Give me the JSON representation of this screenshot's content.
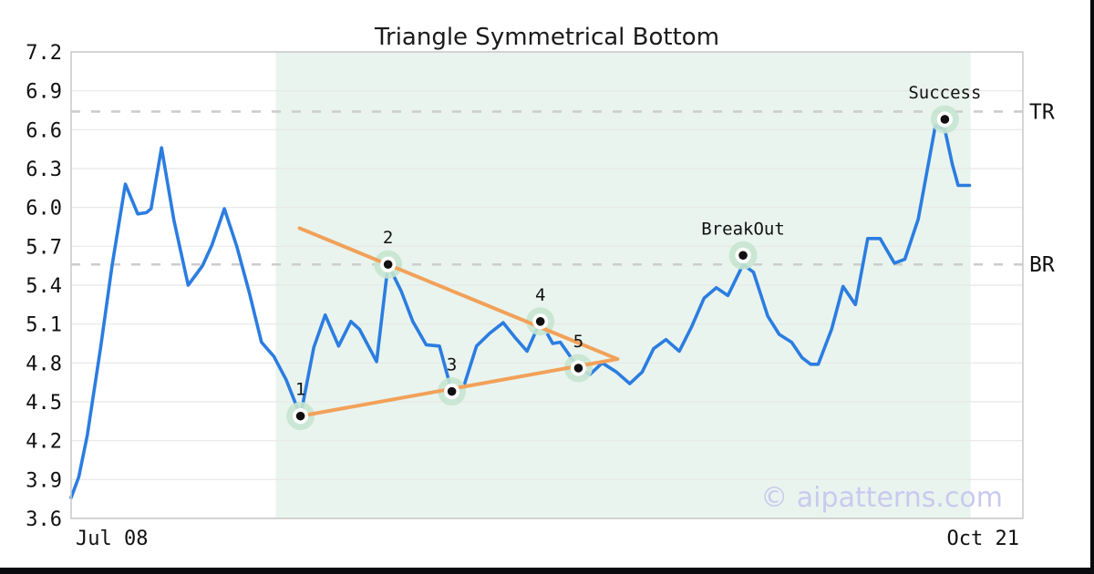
{
  "chart_data": {
    "type": "line",
    "title": "Triangle Symmetrical Bottom",
    "watermark": "© aipatterns.com",
    "ylim": [
      3.6,
      7.2
    ],
    "ytick_step": 0.3,
    "ytick_labels": [
      "3.6",
      "3.9",
      "4.2",
      "4.5",
      "4.8",
      "5.1",
      "5.4",
      "5.7",
      "6.0",
      "6.3",
      "6.6",
      "6.9",
      "7.2"
    ],
    "xtick_labels": [
      "Jul 08",
      "Oct 21"
    ],
    "grid": "horizontal",
    "legend": "none",
    "series": [
      {
        "name": "price",
        "points": [
          [
            0.0,
            3.76
          ],
          [
            0.008,
            3.92
          ],
          [
            0.017,
            4.24
          ],
          [
            0.031,
            4.92
          ],
          [
            0.043,
            5.55
          ],
          [
            0.057,
            6.18
          ],
          [
            0.07,
            5.95
          ],
          [
            0.079,
            5.96
          ],
          [
            0.084,
            5.99
          ],
          [
            0.095,
            6.46
          ],
          [
            0.108,
            5.9
          ],
          [
            0.123,
            5.4
          ],
          [
            0.129,
            5.46
          ],
          [
            0.138,
            5.55
          ],
          [
            0.148,
            5.71
          ],
          [
            0.161,
            5.99
          ],
          [
            0.174,
            5.7
          ],
          [
            0.187,
            5.35
          ],
          [
            0.2,
            4.96
          ],
          [
            0.213,
            4.85
          ],
          [
            0.226,
            4.67
          ],
          [
            0.241,
            4.39
          ],
          [
            0.255,
            4.92
          ],
          [
            0.267,
            5.17
          ],
          [
            0.281,
            4.93
          ],
          [
            0.294,
            5.12
          ],
          [
            0.303,
            5.06
          ],
          [
            0.321,
            4.81
          ],
          [
            0.333,
            5.56
          ],
          [
            0.347,
            5.35
          ],
          [
            0.359,
            5.12
          ],
          [
            0.373,
            4.94
          ],
          [
            0.387,
            4.93
          ],
          [
            0.4,
            4.58
          ],
          [
            0.413,
            4.63
          ],
          [
            0.426,
            4.93
          ],
          [
            0.44,
            5.03
          ],
          [
            0.454,
            5.11
          ],
          [
            0.466,
            5.0
          ],
          [
            0.479,
            4.89
          ],
          [
            0.493,
            5.12
          ],
          [
            0.506,
            4.95
          ],
          [
            0.514,
            4.96
          ],
          [
            0.533,
            4.76
          ],
          [
            0.545,
            4.71
          ],
          [
            0.558,
            4.8
          ],
          [
            0.573,
            4.73
          ],
          [
            0.587,
            4.64
          ],
          [
            0.6,
            4.73
          ],
          [
            0.612,
            4.91
          ],
          [
            0.625,
            4.98
          ],
          [
            0.639,
            4.89
          ],
          [
            0.652,
            5.08
          ],
          [
            0.665,
            5.3
          ],
          [
            0.678,
            5.38
          ],
          [
            0.69,
            5.32
          ],
          [
            0.706,
            5.56
          ],
          [
            0.717,
            5.5
          ],
          [
            0.732,
            5.16
          ],
          [
            0.744,
            5.02
          ],
          [
            0.757,
            4.96
          ],
          [
            0.768,
            4.84
          ],
          [
            0.777,
            4.79
          ],
          [
            0.785,
            4.79
          ],
          [
            0.799,
            5.06
          ],
          [
            0.811,
            5.39
          ],
          [
            0.824,
            5.25
          ],
          [
            0.837,
            5.76
          ],
          [
            0.85,
            5.76
          ],
          [
            0.865,
            5.57
          ],
          [
            0.876,
            5.6
          ],
          [
            0.89,
            5.91
          ],
          [
            0.908,
            6.63
          ],
          [
            0.918,
            6.6
          ],
          [
            0.926,
            6.33
          ],
          [
            0.932,
            6.17
          ],
          [
            0.944,
            6.17
          ]
        ]
      }
    ],
    "trendlines": [
      {
        "name": "upper-resistance",
        "from": [
          0.24,
          5.84
        ],
        "to": [
          0.574,
          4.83
        ]
      },
      {
        "name": "lower-support",
        "from": [
          0.241,
          4.39
        ],
        "to": [
          0.574,
          4.83
        ]
      }
    ],
    "hlines": [
      {
        "label": "TR",
        "value": 6.74
      },
      {
        "label": "BR",
        "value": 5.56
      }
    ],
    "markers": [
      {
        "label": "1",
        "x": 0.241,
        "y": 4.39
      },
      {
        "label": "2",
        "x": 0.333,
        "y": 5.56
      },
      {
        "label": "3",
        "x": 0.4,
        "y": 4.58
      },
      {
        "label": "4",
        "x": 0.493,
        "y": 5.12
      },
      {
        "label": "5",
        "x": 0.533,
        "y": 4.76
      },
      {
        "label": "BreakOut",
        "x": 0.706,
        "y": 5.63
      },
      {
        "label": "Success",
        "x": 0.918,
        "y": 6.68
      }
    ],
    "pattern_region": {
      "x0": 0.215,
      "x1": 0.945
    }
  },
  "colors": {
    "price_line": "#2b7de0",
    "trendline": "#f2a159",
    "marker_halo": "#c6e5d0",
    "marker_ring": "#ffffff",
    "marker_dot": "#111111",
    "pattern_region_fill": "#e9f4ef",
    "dashed_line": "#cdcdcd",
    "gridline": "#e7e7e7",
    "plot_frame": "#c8c8c8",
    "text": "#111111",
    "watermark": "#c8caee",
    "edge_bar": "#0a0b0e"
  }
}
